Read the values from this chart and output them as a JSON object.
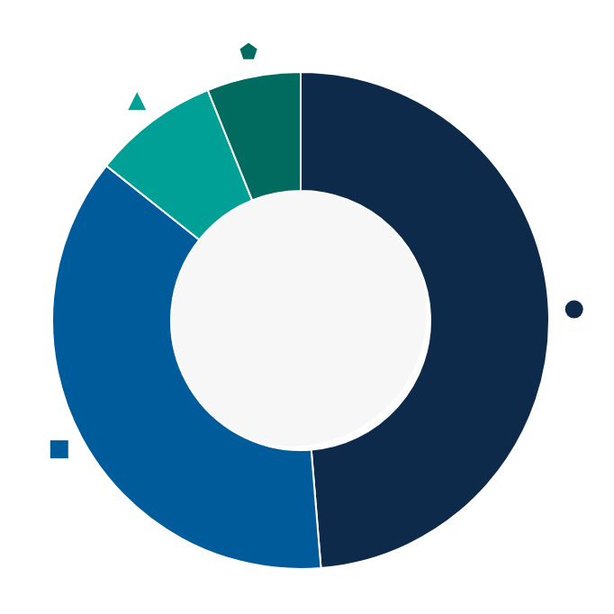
{
  "chart_data": {
    "type": "donut",
    "categories": [
      null,
      null,
      null,
      null
    ],
    "values": [
      48.7,
      37,
      8.2,
      6.1
    ],
    "colors": [
      "#0d2a4a",
      "#005b9a",
      "#00a096",
      "#006b5e"
    ]
  }
}
